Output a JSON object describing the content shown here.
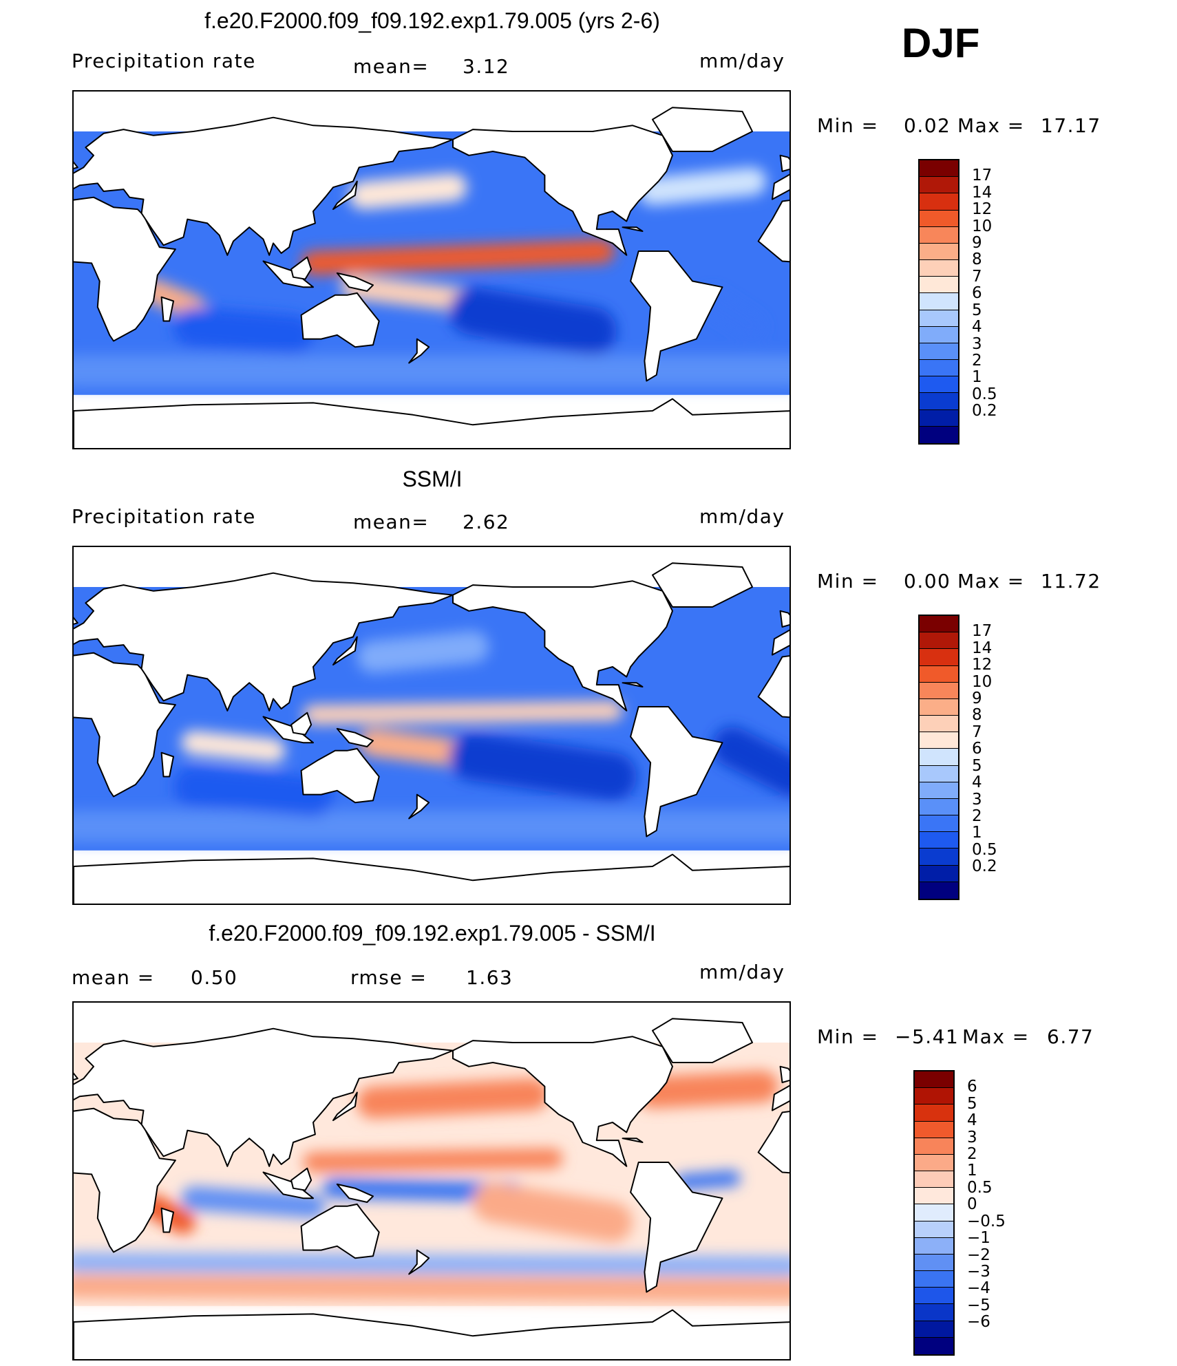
{
  "season": "DJF",
  "colors": {
    "precip": [
      "#00007f",
      "#001ea8",
      "#0a3cd0",
      "#1e5af0",
      "#3a75f6",
      "#5a90f8",
      "#80acfa",
      "#a8c8fc",
      "#d0e4fd",
      "#ffe8d8",
      "#fdd0b8",
      "#fbae88",
      "#f8865a",
      "#f05a2a",
      "#d83010",
      "#b01808",
      "#7a0000"
    ],
    "diff": [
      "#00007f",
      "#0018a0",
      "#0a36c8",
      "#1e56ea",
      "#3a74f2",
      "#6090f4",
      "#8cb0f8",
      "#b8d0fb",
      "#e0ecfd",
      "#ffe8dc",
      "#fdccb8",
      "#fbaa88",
      "#f8845a",
      "#f05a2c",
      "#d8320e",
      "#b01404",
      "#7a0000"
    ]
  },
  "chart_data": [
    {
      "type": "heatmap",
      "title": "f.e20.F2000.f09_f09.192.exp1.79.005 (yrs 2-6)",
      "left_label": "Precipitation  rate",
      "mean_label": "mean=",
      "mean_value": "3.12",
      "units": "mm/day",
      "min_label": "Min  =",
      "min_value": "0.02",
      "max_label": "Max  =",
      "max_value": "17.17",
      "colorbar_ticks": [
        "17",
        "14",
        "12",
        "10",
        "9",
        "8",
        "7",
        "6",
        "5",
        "4",
        "3",
        "2",
        "1",
        "0.5",
        "0.2"
      ],
      "colormap": "precip",
      "features": [
        {
          "lon": [
            120,
            265
          ],
          "lat": [
            4,
            10
          ],
          "value": 11,
          "r": 6
        },
        {
          "lon": [
            140,
            210
          ],
          "lat": [
            -8,
            -16
          ],
          "value": 8,
          "r": 6
        },
        {
          "lon": [
            40,
            60
          ],
          "lat": [
            -10,
            -18
          ],
          "value": 9,
          "r": 6
        },
        {
          "lon": [
            145,
            190
          ],
          "lat": [
            38,
            42
          ],
          "value": 7,
          "r": 7
        },
        {
          "lon": [
            290,
            340
          ],
          "lat": [
            40,
            45
          ],
          "value": 6,
          "r": 7
        },
        {
          "lon": [
            0,
            360
          ],
          "lat": [
            -50,
            -50
          ],
          "value": 3,
          "r": 8
        },
        {
          "lon": [
            200,
            260
          ],
          "lat": [
            -20,
            -30
          ],
          "value": 0.3,
          "r": 12
        },
        {
          "lon": [
            320,
            340
          ],
          "lat": [
            -15,
            -28
          ],
          "value": 1.5,
          "r": 6
        },
        {
          "lon": [
            60,
            110
          ],
          "lat": [
            -28,
            -32
          ],
          "value": 0.8,
          "r": 10
        }
      ]
    },
    {
      "type": "heatmap",
      "title": "SSM/I",
      "left_label": "Precipitation  rate",
      "mean_label": "mean=",
      "mean_value": "2.62",
      "units": "mm/day",
      "min_label": "Min  =",
      "min_value": "0.00",
      "max_label": "Max  =",
      "max_value": "11.72",
      "colorbar_ticks": [
        "17",
        "14",
        "12",
        "10",
        "9",
        "8",
        "7",
        "6",
        "5",
        "4",
        "3",
        "2",
        "1",
        "0.5",
        "0.2"
      ],
      "colormap": "precip",
      "features": [
        {
          "lon": [
            120,
            270
          ],
          "lat": [
            6,
            8
          ],
          "value": 8,
          "r": 5
        },
        {
          "lon": [
            150,
            200
          ],
          "lat": [
            -8,
            -14
          ],
          "value": 9,
          "r": 7
        },
        {
          "lon": [
            60,
            100
          ],
          "lat": [
            -8,
            -12
          ],
          "value": 7,
          "r": 6
        },
        {
          "lon": [
            150,
            200
          ],
          "lat": [
            35,
            40
          ],
          "value": 4,
          "r": 8
        },
        {
          "lon": [
            200,
            270
          ],
          "lat": [
            -15,
            -25
          ],
          "value": 0.3,
          "r": 12
        },
        {
          "lon": [
            0,
            360
          ],
          "lat": [
            -50,
            -50
          ],
          "value": 2.5,
          "r": 8
        },
        {
          "lon": [
            330,
            360
          ],
          "lat": [
            -10,
            -25
          ],
          "value": 0.3,
          "r": 10
        },
        {
          "lon": [
            60,
            120
          ],
          "lat": [
            -30,
            -35
          ],
          "value": 1,
          "r": 10
        }
      ]
    },
    {
      "type": "heatmap",
      "title": "f.e20.F2000.f09_f09.192.exp1.79.005 - SSM/I",
      "left_label": "mean  =",
      "mean_label": "",
      "mean_value": "0.50",
      "rmse_label": "rmse  =",
      "rmse_value": "1.63",
      "units": "mm/day",
      "min_label": "Min  =",
      "min_value": "−5.41",
      "max_label": "Max  =",
      "max_value": "6.77",
      "colorbar_ticks": [
        "6",
        "5",
        "4",
        "3",
        "2",
        "1",
        "0.5",
        "0",
        "−0.5",
        "−1",
        "−2",
        "−3",
        "−4",
        "−5",
        "−6"
      ],
      "colormap": "diff",
      "features": [
        {
          "lon": [
            150,
            230
          ],
          "lat": [
            40,
            44
          ],
          "value": 3,
          "r": 8
        },
        {
          "lon": [
            290,
            345
          ],
          "lat": [
            45,
            48
          ],
          "value": 3,
          "r": 8
        },
        {
          "lon": [
            120,
            240
          ],
          "lat": [
            10,
            12
          ],
          "value": 3,
          "r": 5
        },
        {
          "lon": [
            130,
            220
          ],
          "lat": [
            -3,
            -5
          ],
          "value": -3,
          "r": 5
        },
        {
          "lon": [
            40,
            55
          ],
          "lat": [
            -12,
            -20
          ],
          "value": 4,
          "r": 6
        },
        {
          "lon": [
            0,
            360
          ],
          "lat": [
            -52,
            -54
          ],
          "value": 2,
          "r": 6
        },
        {
          "lon": [
            0,
            360
          ],
          "lat": [
            -40,
            -42
          ],
          "value": -1.5,
          "r": 5
        },
        {
          "lon": [
            210,
            270
          ],
          "lat": [
            -10,
            -20
          ],
          "value": 1.5,
          "r": 10
        },
        {
          "lon": [
            60,
            120
          ],
          "lat": [
            -8,
            -12
          ],
          "value": -2,
          "r": 6
        },
        {
          "lon": [
            305,
            330
          ],
          "lat": [
            0,
            2
          ],
          "value": -3,
          "r": 4
        }
      ]
    }
  ]
}
